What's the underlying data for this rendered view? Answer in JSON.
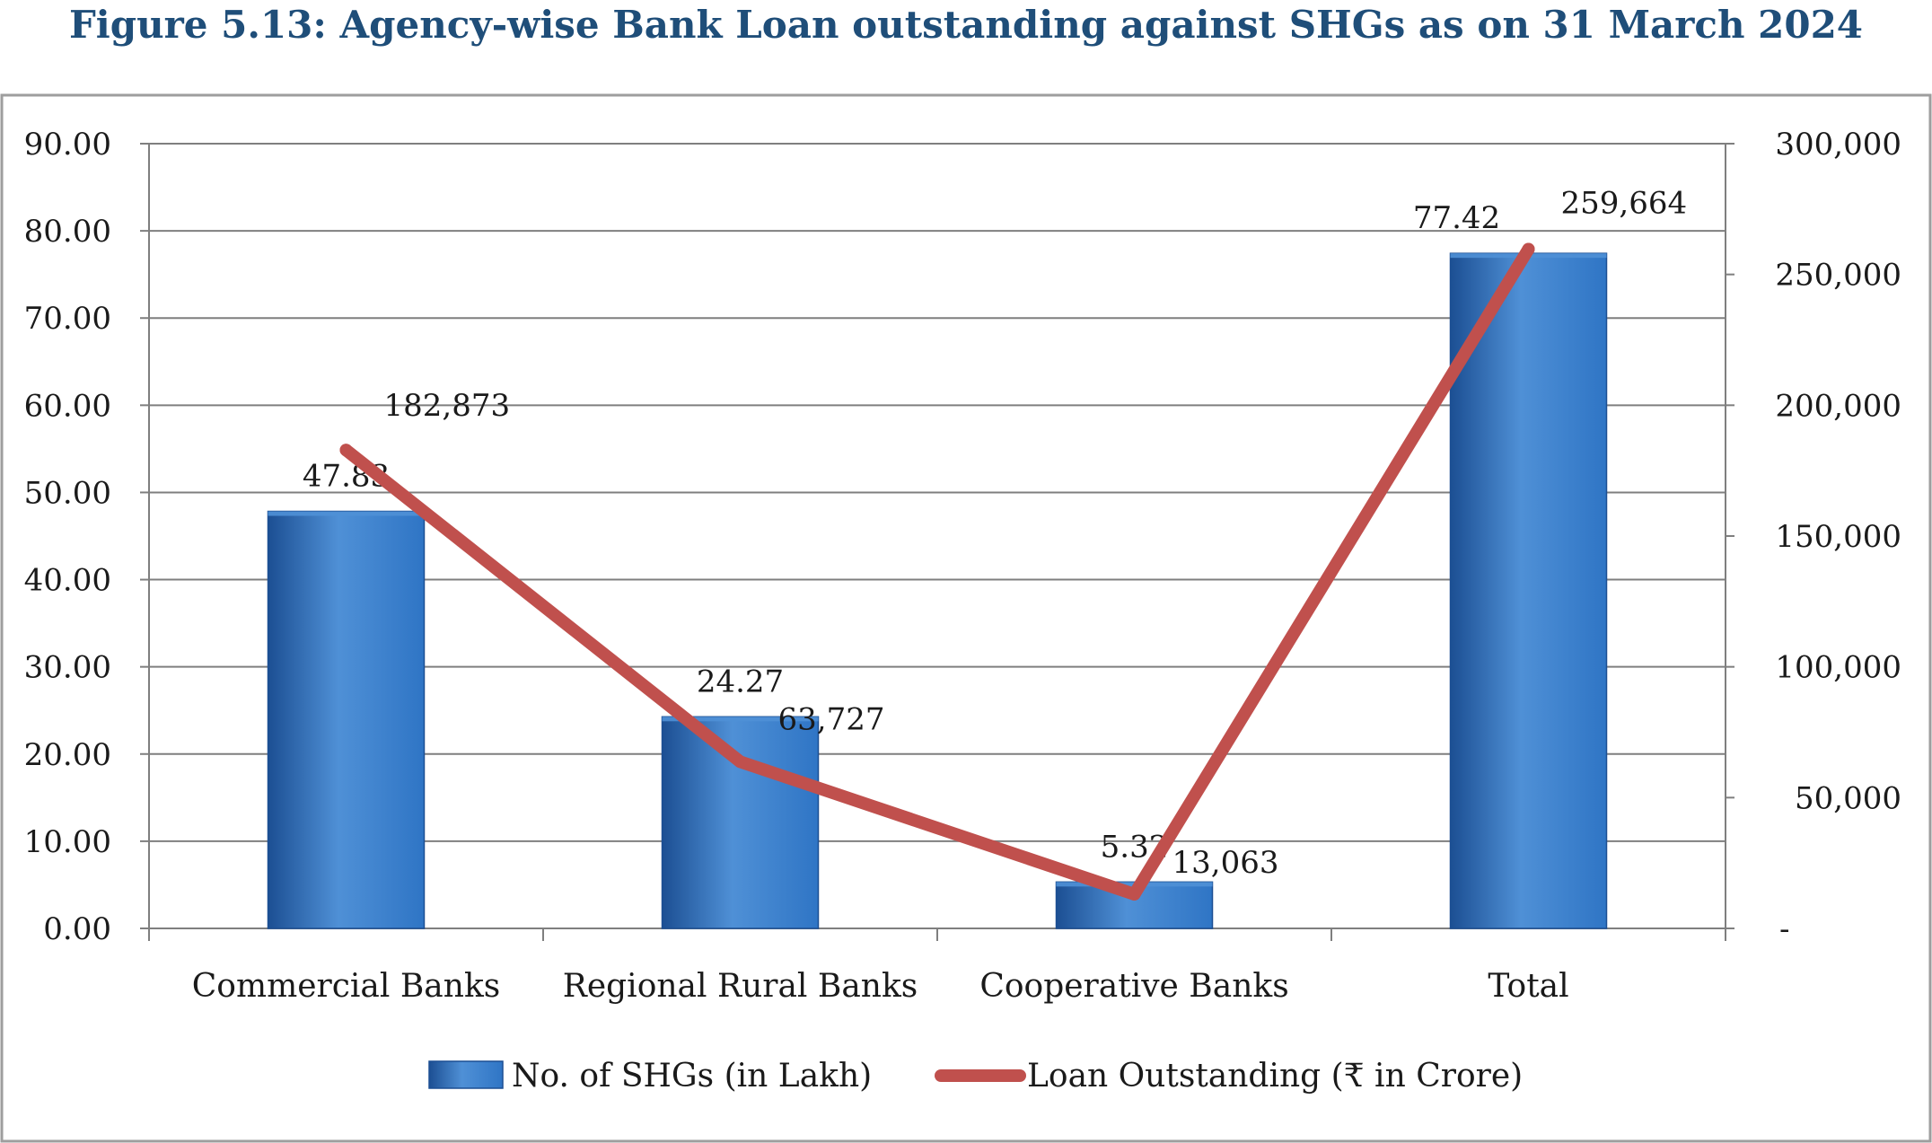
{
  "figure_title": "Figure 5.13: Agency-wise Bank Loan outstanding against SHGs as on 31 March 2024",
  "colors": {
    "title": "#1f4e79",
    "bar": "#2f75c5",
    "bar_dark": "#1c4f93",
    "bar_light": "#4f90d6",
    "line": "#c0504d",
    "grid": "#7f7f7f",
    "text": "#1a1a1a",
    "frame": "#9e9e9e"
  },
  "chart_data": {
    "type": "bar+line",
    "categories": [
      "Commercial Banks",
      "Regional Rural Banks",
      "Cooperative Banks",
      "Total"
    ],
    "series": [
      {
        "name": "No. of SHGs (in Lakh)",
        "type": "bar",
        "axis": "left",
        "values": [
          47.83,
          24.27,
          5.32,
          77.42
        ],
        "labels": [
          "47.83",
          "24.27",
          "5.32",
          "77.42"
        ]
      },
      {
        "name": "Loan Outstanding  (₹ in Crore)",
        "type": "line",
        "axis": "right",
        "values": [
          182873,
          63727,
          13063,
          259664
        ],
        "labels": [
          "182,873",
          "63,727",
          "13,063",
          "259,664"
        ]
      }
    ],
    "y_left": {
      "range": [
        0,
        90
      ],
      "ticks": [
        "0.00",
        "10.00",
        "20.00",
        "30.00",
        "40.00",
        "50.00",
        "60.00",
        "70.00",
        "80.00",
        "90.00"
      ]
    },
    "y_right": {
      "range": [
        0,
        300000
      ],
      "ticks": [
        "-",
        "50,000",
        "100,000",
        "150,000",
        "200,000",
        "250,000",
        "300,000"
      ]
    },
    "grid": true,
    "legend_position": "bottom"
  }
}
